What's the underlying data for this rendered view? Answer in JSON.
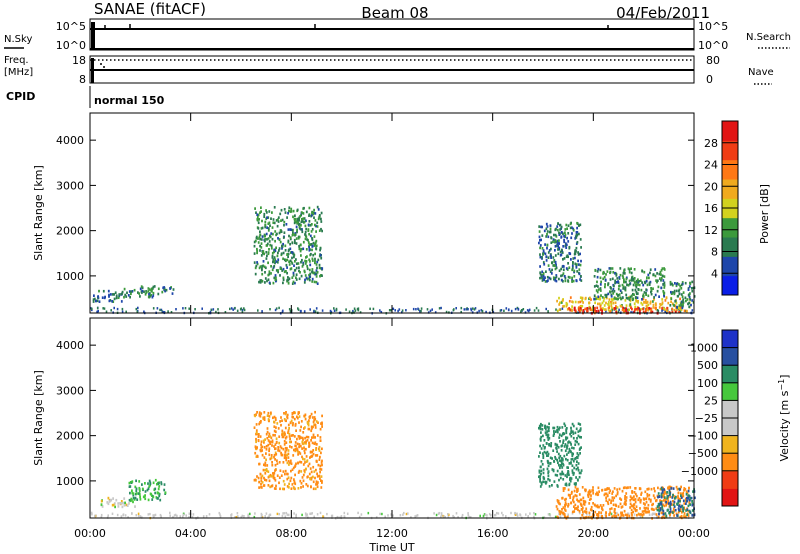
{
  "header": {
    "title": "SANAE (fitACF)",
    "beam": "Beam 08",
    "date": "04/Feb/2011"
  },
  "summary": {
    "nsky_label": "N.Sky",
    "nsky_ticks": [
      "10^5",
      "10^0"
    ],
    "nsearch_label": "N.Search",
    "freq_label": "Freq.",
    "freq_unit": "[MHz]",
    "freq_ticks": [
      "18",
      "8"
    ],
    "nave_label": "Nave",
    "nave_ticks": [
      "80",
      "0"
    ],
    "cpid_label": "CPID",
    "cpid_value": "normal 150"
  },
  "colors": {
    "power_bar": [
      "#0a1ee6",
      "#1e46aa",
      "#2a7a50",
      "#3c9a3c",
      "#d2d21e",
      "#f0aa1e",
      "#ff7814",
      "#f03c14",
      "#e11414"
    ],
    "velocity_bar": [
      "#e11414",
      "#f03c14",
      "#ff8c14",
      "#f0b41e",
      "#c8c8c8",
      "#c8c8c8",
      "#46c83c",
      "#2a8c64",
      "#2850a0",
      "#1e32c8"
    ],
    "background_scatter": "#8c8c8c"
  },
  "chart_data": [
    {
      "type": "heatmap",
      "panel": "power",
      "xlabel": "",
      "ylabel": "Slant Range [km]",
      "ylim": [
        180,
        4600
      ],
      "y_ticks": [
        1000,
        2000,
        3000,
        4000
      ],
      "x_ticks": [],
      "colorbar": {
        "label": "Power [dB]",
        "range": [
          0,
          32
        ],
        "tick_values": [
          4,
          8,
          12,
          16,
          20,
          24,
          28
        ],
        "tick_labels": [
          "4",
          "8",
          "12",
          "16",
          "20",
          "24",
          "28"
        ]
      },
      "echo_regions": [
        {
          "t": [
            0.1,
            1.3
          ],
          "r": [
            450,
            700
          ],
          "value": 8
        },
        {
          "t": [
            1.3,
            2.5
          ],
          "r": [
            550,
            760
          ],
          "value": 10
        },
        {
          "t": [
            2.0,
            3.3
          ],
          "r": [
            620,
            800
          ],
          "value": 9
        },
        {
          "t": [
            6.5,
            9.2
          ],
          "r": [
            850,
            2550
          ],
          "value": 10
        },
        {
          "t": [
            17.8,
            19.5
          ],
          "r": [
            900,
            2200
          ],
          "value": 8
        },
        {
          "t": [
            18.5,
            23.8
          ],
          "r": [
            250,
            550
          ],
          "value": 18
        },
        {
          "t": [
            19.0,
            23.5
          ],
          "r": [
            200,
            330
          ],
          "value": 27
        },
        {
          "t": [
            20.0,
            22.8
          ],
          "r": [
            500,
            1200
          ],
          "value": 10
        },
        {
          "t": [
            23.0,
            24.0
          ],
          "r": [
            300,
            900
          ],
          "value": 9
        }
      ]
    },
    {
      "type": "heatmap",
      "panel": "velocity",
      "xlabel": "Time UT",
      "ylabel": "Slant Range [km]",
      "ylim": [
        180,
        4600
      ],
      "xlim": [
        0,
        24
      ],
      "x_ticks": [
        0,
        4,
        8,
        12,
        16,
        20,
        24
      ],
      "x_tick_labels": [
        "00:00",
        "04:00",
        "08:00",
        "12:00",
        "16:00",
        "20:00",
        "00:00"
      ],
      "y_ticks": [
        1000,
        2000,
        3000,
        4000
      ],
      "colorbar": {
        "label": "Velocity [m s^-1]",
        "tick_labels": [
          "1000",
          "500",
          "100",
          "25",
          "−25",
          "−100",
          "−500",
          "−1000"
        ]
      },
      "echo_regions": [
        {
          "t": [
            0.3,
            1.8
          ],
          "r": [
            450,
            650
          ],
          "value": 0
        },
        {
          "t": [
            1.5,
            3.0
          ],
          "r": [
            600,
            1050
          ],
          "value": 100
        },
        {
          "t": [
            6.5,
            9.2
          ],
          "r": [
            850,
            2550
          ],
          "value": -150
        },
        {
          "t": [
            17.8,
            19.5
          ],
          "r": [
            900,
            2300
          ],
          "value": 300
        },
        {
          "t": [
            18.5,
            23.8
          ],
          "r": [
            200,
            900
          ],
          "value": -200
        },
        {
          "t": [
            22.5,
            24.0
          ],
          "r": [
            250,
            900
          ],
          "value": 500
        }
      ]
    }
  ]
}
